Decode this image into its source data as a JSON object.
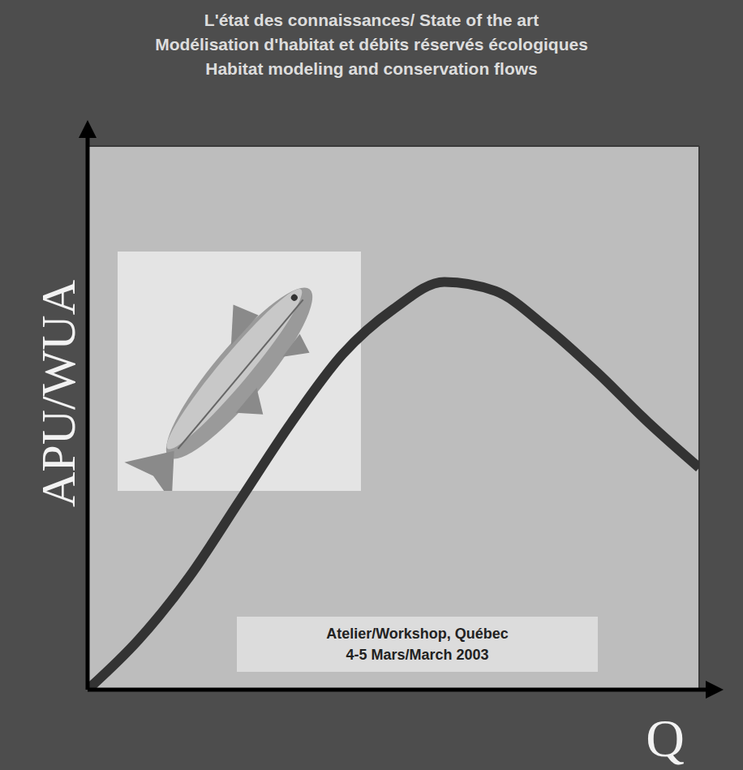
{
  "chart_data": {
    "type": "line",
    "title": "L'état des connaissances/ State of the art",
    "subtitle": [
      "Modélisation d'habitat et débits réservés écologiques",
      "Habitat modeling and conservation flows"
    ],
    "x_label": "Q",
    "y_label": "APU/WUA",
    "x": [
      0,
      0.5,
      1,
      1.5,
      2,
      2.5,
      3,
      3.5,
      4,
      4.5,
      5,
      5.5,
      6
    ],
    "values": [
      0,
      0.55,
      1.25,
      2.1,
      2.95,
      3.7,
      4.2,
      4.5,
      4.4,
      4.0,
      3.5,
      2.95,
      2.45
    ],
    "color": "#333333",
    "xlim": [
      0,
      6
    ],
    "ylim": [
      0,
      6
    ],
    "xticks": [
      0,
      1,
      2,
      3,
      4,
      5,
      6
    ],
    "yticks": [
      0,
      1,
      2,
      3,
      4,
      5,
      6
    ],
    "grid": true,
    "tick_labels": false,
    "annotations": [
      "Atelier/Workshop, Québec",
      "4-5 Mars/March 2003"
    ]
  }
}
